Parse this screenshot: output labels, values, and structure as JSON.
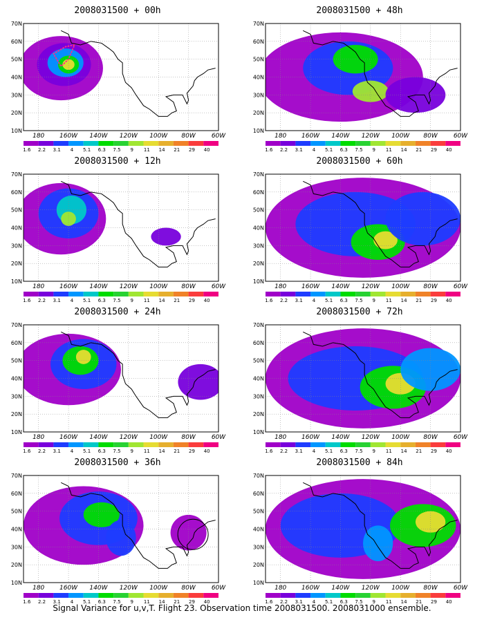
{
  "caption": "Signal Variance for u,v,T. Flight 23. Observation time 2008031500. 2008031000 ensemble.",
  "colorbar": {
    "levels": [
      "1.6",
      "2.2",
      "3.1",
      "4",
      "5.1",
      "6.3",
      "7.5",
      "9",
      "11",
      "14",
      "21",
      "29",
      "40"
    ],
    "colors": [
      "#a000c8",
      "#7800dc",
      "#1e3cff",
      "#0096ff",
      "#00c8c8",
      "#00dc00",
      "#28d232",
      "#a0e632",
      "#e6dc32",
      "#e6af2d",
      "#f08228",
      "#fa3c3c",
      "#f00082"
    ]
  },
  "axes": {
    "y_ticks": [
      "10N",
      "20N",
      "30N",
      "40N",
      "50N",
      "60N",
      "70N"
    ],
    "x_ticks": [
      "180",
      "160W",
      "140W",
      "120W",
      "100W",
      "80W",
      "60W"
    ],
    "lat_range": [
      10,
      70
    ],
    "lon_range": [
      -190,
      -60
    ]
  },
  "panels": [
    {
      "id": "p00",
      "title": "2008031500 + 00h",
      "blobs": [
        [
          -165,
          45,
          28,
          18,
          0
        ],
        [
          -163,
          47,
          18,
          12,
          1
        ],
        [
          -162,
          48,
          12,
          8,
          3
        ],
        [
          -160,
          47,
          7,
          5,
          5
        ],
        [
          -160,
          47,
          4,
          3,
          8
        ]
      ],
      "marker": "dots"
    },
    {
      "id": "p12",
      "title": "2008031500 + 12h",
      "blobs": [
        [
          -165,
          45,
          30,
          20,
          0
        ],
        [
          -160,
          48,
          20,
          14,
          2
        ],
        [
          -158,
          50,
          10,
          8,
          4
        ],
        [
          -160,
          45,
          5,
          4,
          7
        ],
        [
          -95,
          35,
          10,
          5,
          1
        ]
      ]
    },
    {
      "id": "p24",
      "title": "2008031500 + 24h",
      "blobs": [
        [
          -160,
          45,
          35,
          20,
          0
        ],
        [
          -150,
          48,
          22,
          14,
          2
        ],
        [
          -152,
          50,
          12,
          8,
          5
        ],
        [
          -150,
          52,
          5,
          4,
          8
        ],
        [
          -72,
          38,
          15,
          10,
          1
        ]
      ]
    },
    {
      "id": "p36",
      "title": "2008031500 + 36h",
      "blobs": [
        [
          -150,
          42,
          40,
          22,
          0
        ],
        [
          -140,
          46,
          26,
          15,
          2
        ],
        [
          -138,
          48,
          12,
          7,
          5
        ],
        [
          -125,
          35,
          10,
          10,
          2
        ],
        [
          -80,
          38,
          12,
          10,
          0
        ]
      ],
      "marker": "circle"
    },
    {
      "id": "p48",
      "title": "2008031500 + 48h",
      "blobs": [
        [
          -140,
          40,
          55,
          25,
          0
        ],
        [
          -135,
          45,
          30,
          15,
          2
        ],
        [
          -130,
          50,
          15,
          8,
          5
        ],
        [
          -120,
          32,
          12,
          6,
          7
        ],
        [
          -90,
          30,
          20,
          10,
          1
        ]
      ]
    },
    {
      "id": "p60",
      "title": "2008031500 + 60h",
      "blobs": [
        [
          -125,
          40,
          65,
          28,
          0
        ],
        [
          -130,
          42,
          40,
          18,
          2
        ],
        [
          -115,
          32,
          18,
          10,
          5
        ],
        [
          -110,
          33,
          8,
          5,
          8
        ],
        [
          -85,
          45,
          25,
          15,
          2
        ]
      ]
    },
    {
      "id": "p72",
      "title": "2008031500 + 72h",
      "blobs": [
        [
          -125,
          40,
          65,
          28,
          0
        ],
        [
          -130,
          40,
          45,
          18,
          2
        ],
        [
          -105,
          35,
          22,
          12,
          5
        ],
        [
          -100,
          37,
          10,
          6,
          8
        ],
        [
          -80,
          45,
          20,
          12,
          3
        ]
      ]
    },
    {
      "id": "p84",
      "title": "2008031500 + 84h",
      "blobs": [
        [
          -125,
          40,
          65,
          28,
          0
        ],
        [
          -140,
          42,
          40,
          18,
          2
        ],
        [
          -85,
          42,
          22,
          12,
          5
        ],
        [
          -80,
          44,
          10,
          6,
          8
        ],
        [
          -115,
          32,
          10,
          10,
          3
        ]
      ]
    }
  ]
}
